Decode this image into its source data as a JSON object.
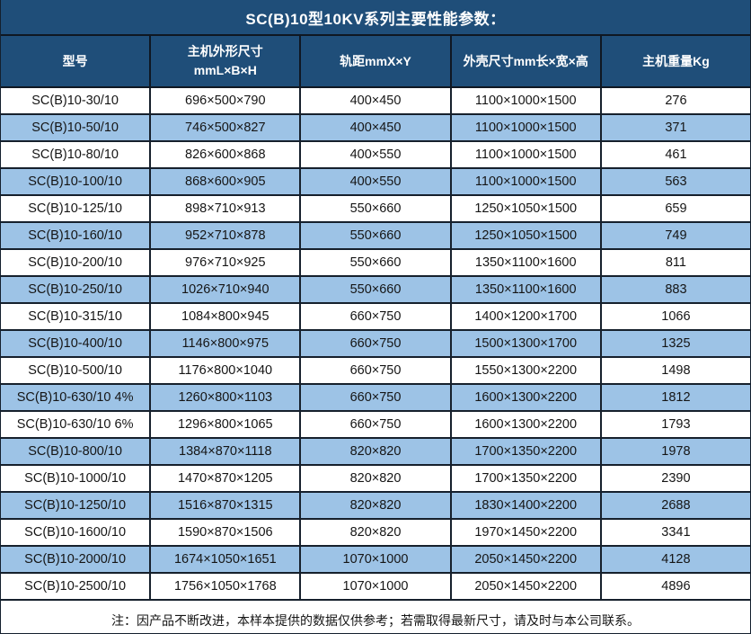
{
  "title": "SC(B)10型10KV系列主要性能参数：",
  "colors": {
    "header_bg": "#1f4e79",
    "alt_row_bg": "#9dc3e6",
    "row_bg": "#ffffff",
    "border": "#16202c",
    "header_text": "#ffffff",
    "body_text": "#151515"
  },
  "table": {
    "column_keys": [
      "model",
      "main-unit-dimensions",
      "rail-gauge",
      "shell-dimensions",
      "weight"
    ],
    "headers": [
      {
        "lines": [
          "型号"
        ]
      },
      {
        "lines": [
          "主机外形尺寸",
          "mmL×B×H"
        ]
      },
      {
        "lines": [
          "轨距mmX×Y"
        ]
      },
      {
        "lines": [
          "外壳尺寸mm长×宽×高"
        ]
      },
      {
        "lines": [
          "主机重量Kg"
        ]
      }
    ],
    "rows": [
      {
        "cells": [
          "SC(B)10-30/10",
          "696×500×790",
          "400×450",
          "1100×1000×1500",
          "276"
        ]
      },
      {
        "cells": [
          "SC(B)10-50/10",
          "746×500×827",
          "400×450",
          "1100×1000×1500",
          "371"
        ]
      },
      {
        "cells": [
          "SC(B)10-80/10",
          "826×600×868",
          "400×550",
          "1100×1000×1500",
          "461"
        ]
      },
      {
        "cells": [
          "SC(B)10-100/10",
          "868×600×905",
          "400×550",
          "1100×1000×1500",
          "563"
        ]
      },
      {
        "cells": [
          "SC(B)10-125/10",
          "898×710×913",
          "550×660",
          "1250×1050×1500",
          "659"
        ]
      },
      {
        "cells": [
          "SC(B)10-160/10",
          "952×710×878",
          "550×660",
          "1250×1050×1500",
          "749"
        ]
      },
      {
        "cells": [
          "SC(B)10-200/10",
          "976×710×925",
          "550×660",
          "1350×1100×1600",
          "811"
        ]
      },
      {
        "cells": [
          "SC(B)10-250/10",
          "1026×710×940",
          "550×660",
          "1350×1100×1600",
          "883"
        ]
      },
      {
        "cells": [
          "SC(B)10-315/10",
          "1084×800×945",
          "660×750",
          "1400×1200×1700",
          "1066"
        ]
      },
      {
        "cells": [
          "SC(B)10-400/10",
          "1146×800×975",
          "660×750",
          "1500×1300×1700",
          "1325"
        ]
      },
      {
        "cells": [
          "SC(B)10-500/10",
          "1176×800×1040",
          "660×750",
          "1550×1300×2200",
          "1498"
        ]
      },
      {
        "cells": [
          "SC(B)10-630/10 4%",
          "1260×800×1103",
          "660×750",
          "1600×1300×2200",
          "1812"
        ]
      },
      {
        "cells": [
          "SC(B)10-630/10 6%",
          "1296×800×1065",
          "660×750",
          "1600×1300×2200",
          "1793"
        ]
      },
      {
        "cells": [
          "SC(B)10-800/10",
          "1384×870×1118",
          "820×820",
          "1700×1350×2200",
          "1978"
        ]
      },
      {
        "cells": [
          "SC(B)10-1000/10",
          "1470×870×1205",
          "820×820",
          "1700×1350×2200",
          "2390"
        ]
      },
      {
        "cells": [
          "SC(B)10-1250/10",
          "1516×870×1315",
          "820×820",
          "1830×1400×2200",
          "2688"
        ]
      },
      {
        "cells": [
          "SC(B)10-1600/10",
          "1590×870×1506",
          "820×820",
          "1970×1450×2200",
          "3341"
        ]
      },
      {
        "cells": [
          "SC(B)10-2000/10",
          "1674×1050×1651",
          "1070×1000",
          "2050×1450×2200",
          "4128"
        ]
      },
      {
        "cells": [
          "SC(B)10-2500/10",
          "1756×1050×1768",
          "1070×1000",
          "2050×1450×2200",
          "4896"
        ]
      }
    ]
  },
  "footer_note": "注：因产品不断改进，本样本提供的数据仅供参考；若需取得最新尺寸，请及时与本公司联系。"
}
